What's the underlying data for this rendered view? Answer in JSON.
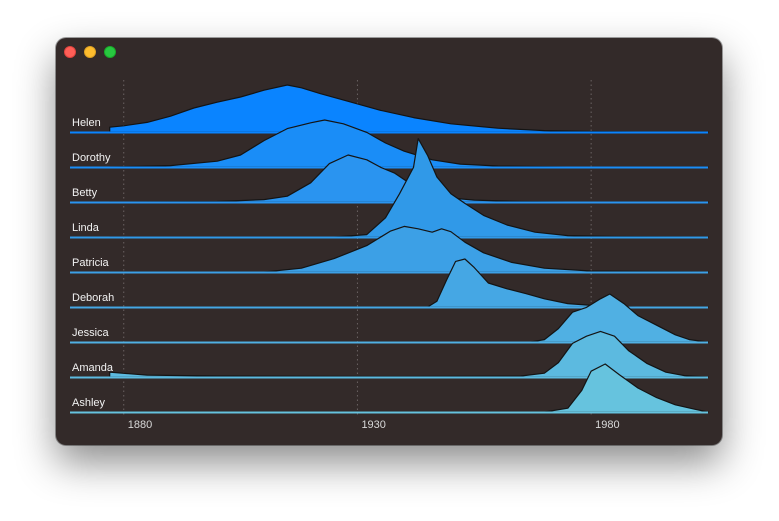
{
  "window": {
    "controls": [
      "close",
      "minimize",
      "zoom"
    ]
  },
  "chart_data": {
    "type": "area",
    "subtype": "ridgeline",
    "title": "",
    "xlabel": "",
    "ylabel": "",
    "xlim": [
      1870,
      2005
    ],
    "x_ticks": [
      {
        "value": 1880,
        "label": "1880"
      },
      {
        "value": 1930,
        "label": "1930"
      },
      {
        "value": 1980,
        "label": "1980"
      }
    ],
    "grid": "vertical-dotted",
    "series_colors": [
      "#0a84ff",
      "#1a8df7",
      "#2a94f0",
      "#3099e8",
      "#3ca0e6",
      "#45a7e4",
      "#50b0e3",
      "#5cbae0",
      "#66c3de"
    ],
    "series": [
      {
        "name": "Helen",
        "points": [
          [
            1877,
            0
          ],
          [
            1877,
            0.1
          ],
          [
            1880,
            0.13
          ],
          [
            1885,
            0.2
          ],
          [
            1890,
            0.33
          ],
          [
            1895,
            0.5
          ],
          [
            1900,
            0.62
          ],
          [
            1905,
            0.73
          ],
          [
            1910,
            0.87
          ],
          [
            1915,
            0.98
          ],
          [
            1918,
            0.92
          ],
          [
            1922,
            0.8
          ],
          [
            1928,
            0.64
          ],
          [
            1935,
            0.45
          ],
          [
            1942,
            0.3
          ],
          [
            1950,
            0.17
          ],
          [
            1960,
            0.08
          ],
          [
            1970,
            0.03
          ],
          [
            1980,
            0.01
          ],
          [
            1990,
            0
          ],
          [
            2005,
            0
          ]
        ]
      },
      {
        "name": "Dorothy",
        "points": [
          [
            1877,
            0
          ],
          [
            1890,
            0.03
          ],
          [
            1900,
            0.12
          ],
          [
            1905,
            0.25
          ],
          [
            1910,
            0.55
          ],
          [
            1915,
            0.8
          ],
          [
            1920,
            0.92
          ],
          [
            1923,
            0.98
          ],
          [
            1927,
            0.9
          ],
          [
            1932,
            0.72
          ],
          [
            1936,
            0.5
          ],
          [
            1940,
            0.33
          ],
          [
            1946,
            0.15
          ],
          [
            1952,
            0.06
          ],
          [
            1960,
            0.02
          ],
          [
            1975,
            0
          ],
          [
            2005,
            0
          ]
        ]
      },
      {
        "name": "Betty",
        "points": [
          [
            1877,
            0
          ],
          [
            1900,
            0.01
          ],
          [
            1910,
            0.05
          ],
          [
            1915,
            0.12
          ],
          [
            1920,
            0.4
          ],
          [
            1924,
            0.8
          ],
          [
            1928,
            0.98
          ],
          [
            1932,
            0.88
          ],
          [
            1935,
            0.72
          ],
          [
            1938,
            0.6
          ],
          [
            1941,
            0.4
          ],
          [
            1944,
            0.22
          ],
          [
            1948,
            0.1
          ],
          [
            1955,
            0.04
          ],
          [
            1965,
            0.01
          ],
          [
            1975,
            0
          ],
          [
            2005,
            0
          ]
        ]
      },
      {
        "name": "Linda",
        "points": [
          [
            1877,
            0
          ],
          [
            1925,
            0
          ],
          [
            1932,
            0.05
          ],
          [
            1936,
            0.4
          ],
          [
            1939,
            0.9
          ],
          [
            1942,
            1.45
          ],
          [
            1943,
            2.05
          ],
          [
            1945,
            1.7
          ],
          [
            1947,
            1.25
          ],
          [
            1950,
            0.9
          ],
          [
            1953,
            0.7
          ],
          [
            1957,
            0.45
          ],
          [
            1962,
            0.25
          ],
          [
            1968,
            0.1
          ],
          [
            1975,
            0.03
          ],
          [
            1985,
            0.01
          ],
          [
            2005,
            0
          ]
        ]
      },
      {
        "name": "Patricia",
        "points": [
          [
            1877,
            0
          ],
          [
            1910,
            0
          ],
          [
            1918,
            0.08
          ],
          [
            1925,
            0.28
          ],
          [
            1932,
            0.55
          ],
          [
            1937,
            0.85
          ],
          [
            1940,
            0.95
          ],
          [
            1943,
            0.9
          ],
          [
            1946,
            0.83
          ],
          [
            1948,
            0.9
          ],
          [
            1950,
            0.84
          ],
          [
            1953,
            0.62
          ],
          [
            1957,
            0.4
          ],
          [
            1963,
            0.2
          ],
          [
            1970,
            0.08
          ],
          [
            1980,
            0.02
          ],
          [
            2005,
            0
          ]
        ]
      },
      {
        "name": "Deborah",
        "points": [
          [
            1877,
            0
          ],
          [
            1945,
            0
          ],
          [
            1947,
            0.12
          ],
          [
            1949,
            0.55
          ],
          [
            1951,
            0.95
          ],
          [
            1953,
            1.0
          ],
          [
            1955,
            0.82
          ],
          [
            1958,
            0.5
          ],
          [
            1962,
            0.38
          ],
          [
            1966,
            0.28
          ],
          [
            1970,
            0.17
          ],
          [
            1975,
            0.07
          ],
          [
            1982,
            0.02
          ],
          [
            1990,
            0
          ],
          [
            2005,
            0
          ]
        ]
      },
      {
        "name": "Jessica",
        "points": [
          [
            1877,
            0
          ],
          [
            1967,
            0
          ],
          [
            1970,
            0.05
          ],
          [
            1973,
            0.28
          ],
          [
            1976,
            0.62
          ],
          [
            1979,
            0.72
          ],
          [
            1982,
            0.9
          ],
          [
            1984,
            1.0
          ],
          [
            1987,
            0.8
          ],
          [
            1990,
            0.55
          ],
          [
            1994,
            0.35
          ],
          [
            1998,
            0.15
          ],
          [
            2001,
            0.05
          ],
          [
            2005,
            0
          ]
        ]
      },
      {
        "name": "Amanda",
        "points": [
          [
            1877,
            0.1
          ],
          [
            1885,
            0.04
          ],
          [
            1900,
            0.02
          ],
          [
            1940,
            0.01
          ],
          [
            1965,
            0.02
          ],
          [
            1970,
            0.08
          ],
          [
            1973,
            0.3
          ],
          [
            1976,
            0.7
          ],
          [
            1979,
            0.85
          ],
          [
            1982,
            0.95
          ],
          [
            1985,
            0.85
          ],
          [
            1988,
            0.55
          ],
          [
            1992,
            0.28
          ],
          [
            1996,
            0.1
          ],
          [
            2000,
            0.03
          ],
          [
            2005,
            0
          ]
        ]
      },
      {
        "name": "Ashley",
        "points": [
          [
            1877,
            0
          ],
          [
            1970,
            0
          ],
          [
            1975,
            0.08
          ],
          [
            1978,
            0.45
          ],
          [
            1980,
            0.85
          ],
          [
            1983,
            1.0
          ],
          [
            1986,
            0.78
          ],
          [
            1990,
            0.5
          ],
          [
            1994,
            0.3
          ],
          [
            1998,
            0.15
          ],
          [
            2002,
            0.06
          ],
          [
            2005,
            0
          ]
        ]
      }
    ]
  }
}
